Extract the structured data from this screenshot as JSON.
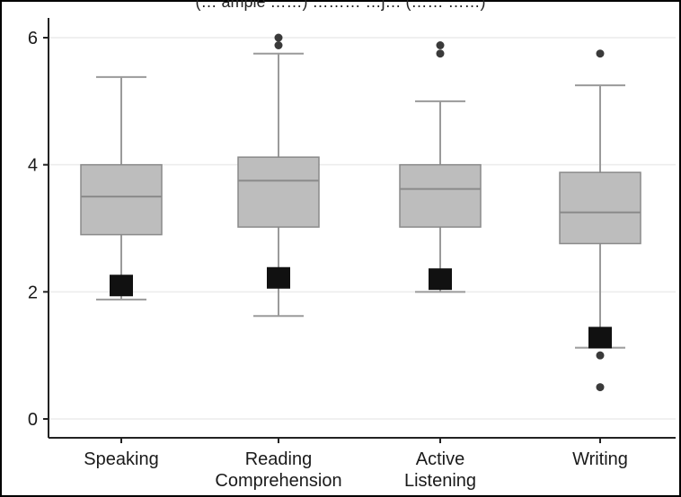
{
  "caption": "(… ample ……) ……… …j… (…… ……)",
  "chart_data": {
    "type": "box",
    "title": "",
    "xlabel": "",
    "ylabel": "",
    "ylim": [
      -0.2,
      6.3
    ],
    "yticks": [
      0,
      2,
      4,
      6
    ],
    "ytick_labels": [
      "0",
      "2",
      "4",
      "6"
    ],
    "grid": true,
    "categories": [
      {
        "lines": [
          "Speaking"
        ]
      },
      {
        "lines": [
          "Reading",
          "Comprehension"
        ]
      },
      {
        "lines": [
          "Active",
          "Listening"
        ]
      },
      {
        "lines": [
          "Writing"
        ]
      }
    ],
    "boxes": [
      {
        "whisker_low": 1.88,
        "q1": 2.9,
        "median": 3.5,
        "q3": 4.0,
        "whisker_high": 5.38,
        "outliers": [],
        "marker": 2.1
      },
      {
        "whisker_low": 1.62,
        "q1": 3.02,
        "median": 3.75,
        "q3": 4.12,
        "whisker_high": 5.75,
        "outliers": [
          5.88,
          6.0
        ],
        "marker": 2.22
      },
      {
        "whisker_low": 2.0,
        "q1": 3.02,
        "median": 3.62,
        "q3": 4.0,
        "whisker_high": 5.0,
        "outliers": [
          5.75,
          5.88
        ],
        "marker": 2.2
      },
      {
        "whisker_low": 1.12,
        "q1": 2.76,
        "median": 3.25,
        "q3": 3.88,
        "whisker_high": 5.25,
        "outliers": [
          0.5,
          1.0,
          5.75
        ],
        "marker": 1.28
      }
    ],
    "colors": {
      "box_fill": "#bdbdbd",
      "box_stroke": "#8a8a8a",
      "whisker": "#9a9a9a",
      "outlier": "#3a3a3a",
      "marker": "#111111",
      "grid": "#ececec",
      "axis": "#222222"
    }
  }
}
